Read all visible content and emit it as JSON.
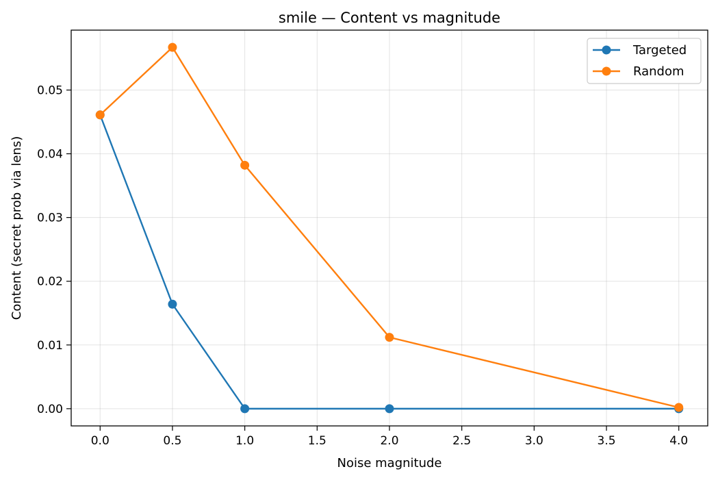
{
  "chart_data": {
    "type": "line",
    "title": "smile — Content vs magnitude",
    "xlabel": "Noise magnitude",
    "ylabel": "Content (secret prob via lens)",
    "x": [
      0.0,
      0.5,
      1.0,
      2.0,
      4.0
    ],
    "series": [
      {
        "name": "Targeted",
        "color": "#1f77b4",
        "values": [
          0.0461,
          0.0164,
          0.0,
          0.0,
          0.0
        ]
      },
      {
        "name": "Random",
        "color": "#ff7f0e",
        "values": [
          0.0461,
          0.0567,
          0.0382,
          0.0112,
          0.0002
        ]
      }
    ],
    "xlim": [
      -0.2,
      4.2
    ],
    "ylim": [
      -0.0027,
      0.0594
    ],
    "xticks": [
      0.0,
      0.5,
      1.0,
      1.5,
      2.0,
      2.5,
      3.0,
      3.5,
      4.0
    ],
    "xtick_labels": [
      "0.0",
      "0.5",
      "1.0",
      "1.5",
      "2.0",
      "2.5",
      "3.0",
      "3.5",
      "4.0"
    ],
    "yticks": [
      0.0,
      0.01,
      0.02,
      0.03,
      0.04,
      0.05
    ],
    "ytick_labels": [
      "0.00",
      "0.01",
      "0.02",
      "0.03",
      "0.04",
      "0.05"
    ],
    "grid": true,
    "legend_position": "upper right"
  }
}
